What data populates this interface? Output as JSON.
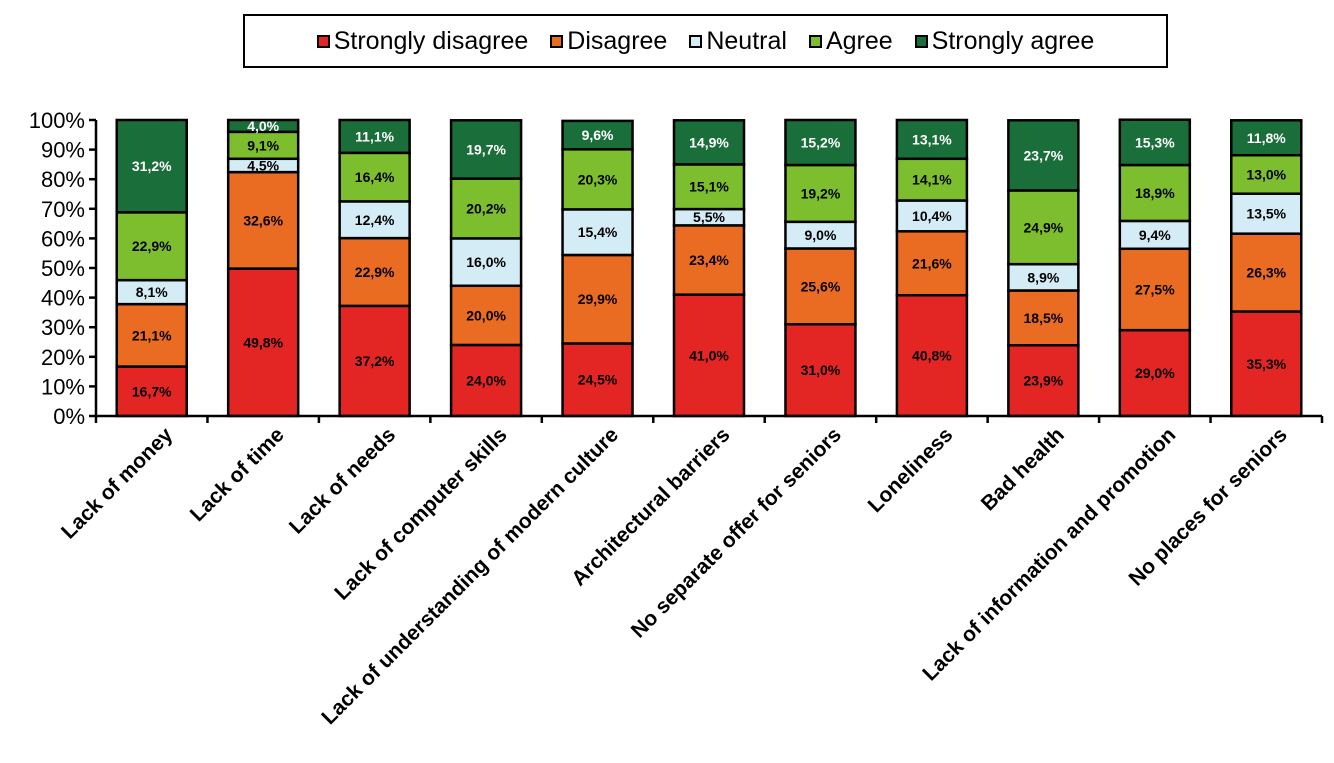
{
  "chart_data": {
    "type": "bar",
    "stacked": true,
    "percent_stacked": true,
    "categories": [
      "Lack of money",
      "Lack of time",
      "Lack of needs",
      "Lack of computer skills",
      "Lack of understanding of modern culture",
      "Architectural barriers",
      "No separate offer for seniors",
      "Loneliness",
      "Bad health",
      "Lack of information and promotion",
      "No places for seniors"
    ],
    "series": [
      {
        "name": "Strongly disagree",
        "color": "#e32624",
        "values": [
          16.7,
          49.8,
          37.2,
          24.0,
          24.5,
          41.0,
          31.0,
          40.8,
          23.9,
          29.0,
          35.3
        ],
        "labels": [
          "16,7%",
          "49,8%",
          "37,2%",
          "24,0%",
          "24,5%",
          "41,0%",
          "31,0%",
          "40,8%",
          "23,9%",
          "29,0%",
          "35,3%"
        ]
      },
      {
        "name": "Disagree",
        "color": "#ea6b22",
        "values": [
          21.1,
          32.6,
          22.9,
          20.0,
          29.9,
          23.4,
          25.6,
          21.6,
          18.5,
          27.5,
          26.3
        ],
        "labels": [
          "21,1%",
          "32,6%",
          "22,9%",
          "20,0%",
          "29,9%",
          "23,4%",
          "25,6%",
          "21,6%",
          "18,5%",
          "27,5%",
          "26,3%"
        ]
      },
      {
        "name": "Neutral",
        "color": "#d4ecf5",
        "values": [
          8.1,
          4.5,
          12.4,
          16.0,
          15.4,
          5.5,
          9.0,
          10.4,
          8.9,
          9.4,
          13.5
        ],
        "labels": [
          "8,1%",
          "4,5%",
          "12,4%",
          "16,0%",
          "15,4%",
          "5,5%",
          "9,0%",
          "10,4%",
          "8,9%",
          "9,4%",
          "13,5%"
        ]
      },
      {
        "name": "Agree",
        "color": "#7cbe2e",
        "values": [
          22.9,
          9.1,
          16.4,
          20.2,
          20.3,
          15.1,
          19.2,
          14.1,
          24.9,
          18.9,
          13.0
        ],
        "labels": [
          "22,9%",
          "9,1%",
          "16,4%",
          "20,2%",
          "20,3%",
          "15,1%",
          "19,2%",
          "14,1%",
          "24,9%",
          "18,9%",
          "13,0%"
        ]
      },
      {
        "name": "Strongly agree",
        "color": "#1a6e3a",
        "values": [
          31.2,
          4.0,
          11.1,
          19.7,
          9.6,
          14.9,
          15.2,
          13.1,
          23.7,
          15.3,
          11.8
        ],
        "labels": [
          "31,2%",
          "4,0%",
          "11,1%",
          "19,7%",
          "9,6%",
          "14,9%",
          "15,2%",
          "13,1%",
          "23,7%",
          "15,3%",
          "11,8%"
        ]
      }
    ],
    "y_ticks": [
      "0%",
      "10%",
      "20%",
      "30%",
      "40%",
      "50%",
      "60%",
      "70%",
      "80%",
      "90%",
      "100%"
    ],
    "ylim": [
      0,
      100
    ],
    "legend_position": "top",
    "grid": false
  }
}
